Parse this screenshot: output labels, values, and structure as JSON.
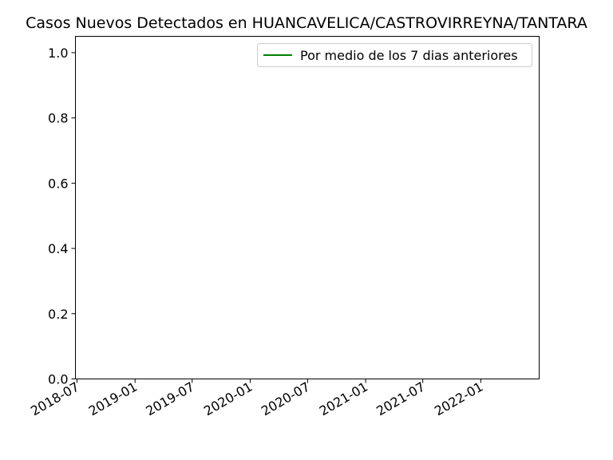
{
  "chart_data": {
    "type": "line",
    "title": "Casos Nuevos Detectados en HUANCAVELICA/CASTROVIRREYNA/TANTARA",
    "xlabel": "",
    "ylabel": "",
    "x_axis_type": "date",
    "xlim": [
      "2018-06-26",
      "2022-07-05"
    ],
    "ylim": [
      0,
      1.05
    ],
    "x_ticks": [
      "2018-07",
      "2019-01",
      "2019-07",
      "2020-01",
      "2020-07",
      "2021-01",
      "2021-07",
      "2022-01"
    ],
    "y_ticks": [
      "0.0",
      "0.2",
      "0.4",
      "0.6",
      "0.8",
      "1.0"
    ],
    "grid": false,
    "legend_position": "top-right",
    "series": [
      {
        "name": "Por medio de los 7 dias anteriores",
        "color": "#008000",
        "x": [],
        "y": []
      }
    ]
  }
}
